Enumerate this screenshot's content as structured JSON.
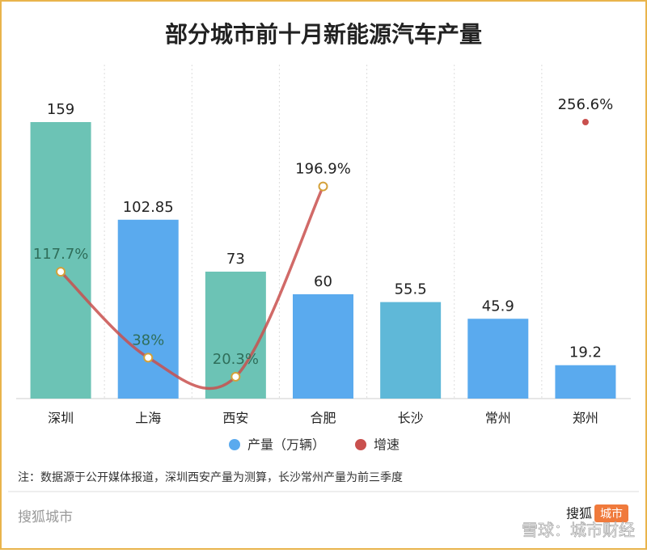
{
  "chart_data": {
    "type": "bar",
    "title": "部分城市前十月新能源汽车产量",
    "categories": [
      "深圳",
      "上海",
      "西安",
      "合肥",
      "长沙",
      "常州",
      "郑州"
    ],
    "series": [
      {
        "name": "产量（万辆）",
        "type": "bar",
        "color": "#5aaaee",
        "colors": [
          "#6cc3b5",
          "#5aaaee",
          "#6cc3b5",
          "#5aaaee",
          "#5fb8d8",
          "#5aaaee",
          "#5aaaee"
        ],
        "values": [
          159,
          102.85,
          73,
          60,
          55.5,
          45.9,
          19.2
        ]
      },
      {
        "name": "增速",
        "type": "line",
        "color": "#c9504e",
        "values": [
          117.7,
          38,
          20.3,
          196.9,
          null,
          null,
          256.6
        ],
        "value_labels": [
          "117.7%",
          "38%",
          "20.3%",
          "196.9%",
          null,
          null,
          "256.6%"
        ]
      }
    ],
    "note": "注：数据源于公开媒体报道，深圳西安产量为测算，长沙常州产量为前三季度",
    "source": "搜狐城市",
    "logo": {
      "text": "搜狐",
      "badge": "城市"
    },
    "watermark": "雪球：城市财经"
  }
}
